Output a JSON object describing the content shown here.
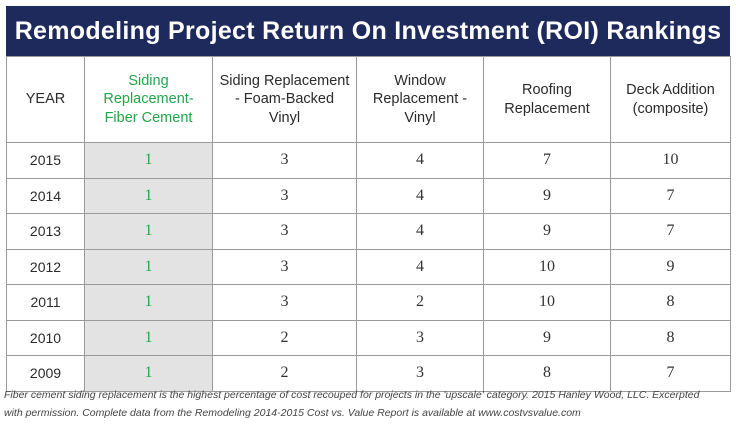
{
  "title": "Remodeling Project Return On Investment (ROI) Rankings",
  "highlight_color": "#22a64a",
  "header_color": "#1f2a5c",
  "chart_data": {
    "type": "table",
    "title": "Remodeling Project Return On Investment (ROI) Rankings",
    "columns": [
      "YEAR",
      "Siding Replacement-Fiber Cement",
      "Siding Replacement - Foam-Backed Vinyl",
      "Window Replacement - Vinyl",
      "Roofing Replacement",
      "Deck Addition (composite)"
    ],
    "highlighted_column": 1,
    "rows": [
      [
        "2015",
        "1",
        "3",
        "4",
        "7",
        "10"
      ],
      [
        "2014",
        "1",
        "3",
        "4",
        "9",
        "7"
      ],
      [
        "2013",
        "1",
        "3",
        "4",
        "9",
        "7"
      ],
      [
        "2012",
        "1",
        "3",
        "4",
        "10",
        "9"
      ],
      [
        "2011",
        "1",
        "3",
        "2",
        "10",
        "8"
      ],
      [
        "2010",
        "1",
        "2",
        "3",
        "9",
        "8"
      ],
      [
        "2009",
        "1",
        "2",
        "3",
        "8",
        "7"
      ]
    ]
  },
  "caption_lines": [
    "Fiber cement siding replacement is the highest percentage of cost recouped for projects in the 'upscale' category. 2015 Hanley Wood, LLC. Excerpted",
    "with permission. Complete data from the Remodeling 2014-2015 Cost vs. Value Report is available at www.costvsvalue.com"
  ]
}
